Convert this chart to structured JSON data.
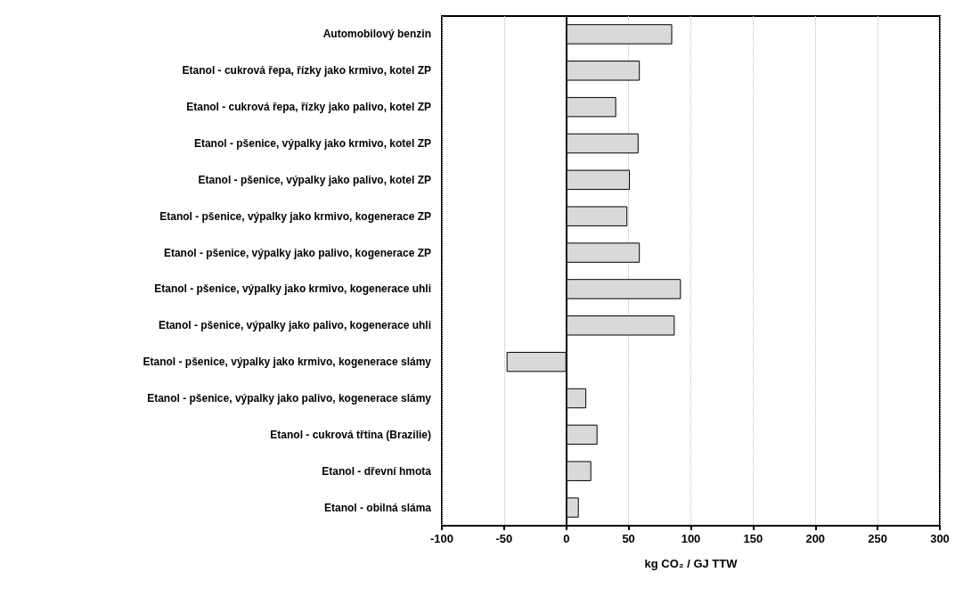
{
  "chart_data": {
    "type": "bar",
    "orientation": "horizontal",
    "categories": [
      "Automobilový benzin",
      "Etanol - cukrová řepa, řízky jako krmivo, kotel ZP",
      "Etanol - cukrová řepa, řízky jako palivo, kotel ZP",
      "Etanol - pšenice, výpalky jako krmivo, kotel ZP",
      "Etanol - pšenice, výpalky jako palivo, kotel ZP",
      "Etanol - pšenice, výpalky jako krmivo, kogenerace ZP",
      "Etanol - pšenice, výpalky jako palivo, kogenerace ZP",
      "Etanol - pšenice, výpalky jako krmivo, kogenerace uhli",
      "Etanol - pšenice, výpalky jako palivo, kogenerace uhli",
      "Etanol - pšenice, výpalky jako krmivo, kogenerace slámy",
      "Etanol - pšenice, výpalky jako palivo, kogenerace slámy",
      "Etanol - cukrová třtina (Brazilie)",
      "Etanol - dřevní hmota",
      "Etanol - obilná sláma"
    ],
    "values": [
      85,
      59,
      40,
      58,
      51,
      49,
      59,
      92,
      87,
      -48,
      16,
      25,
      20,
      10
    ],
    "color": "#d9d9d9",
    "xlabel": "kg CO₂ / GJ TTW",
    "xlim": [
      -100,
      300
    ],
    "xticks": [
      -100,
      -50,
      0,
      50,
      100,
      150,
      200,
      250,
      300
    ],
    "grid": "x"
  }
}
